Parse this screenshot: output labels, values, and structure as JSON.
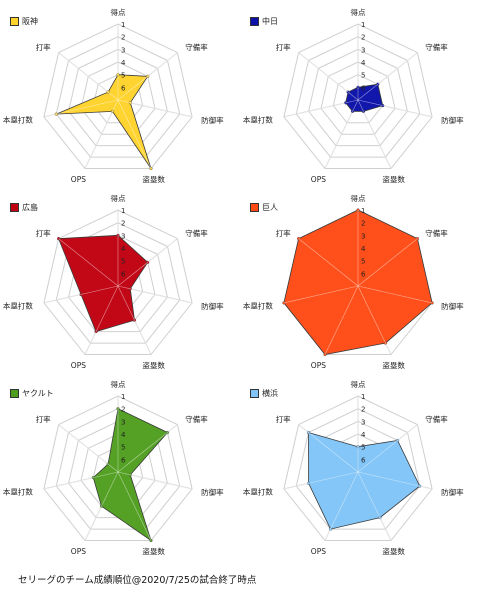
{
  "chart_data": [
    {
      "type": "radar",
      "team": "阪神",
      "color": "#FFD32A",
      "axes": [
        "得点",
        "守備率",
        "防御率",
        "盗塁数",
        "OPS",
        "本塁打数",
        "打率"
      ],
      "tick_labels": [
        "1",
        "2",
        "3",
        "4",
        "5",
        "6"
      ],
      "values": [
        5,
        4,
        6,
        1,
        6,
        2,
        6
      ]
    },
    {
      "type": "radar",
      "team": "中日",
      "color": "#0A10A8",
      "axes": [
        "得点",
        "守備率",
        "防御率",
        "盗塁数",
        "OPS",
        "本塁打数",
        "打率"
      ],
      "tick_labels": [
        "1",
        "2",
        "3",
        "4",
        "5",
        "6"
      ],
      "values": [
        6,
        5,
        5,
        6,
        6,
        6,
        6
      ]
    },
    {
      "type": "radar",
      "team": "広島",
      "color": "#C00010",
      "axes": [
        "得点",
        "守備率",
        "防御率",
        "盗塁数",
        "OPS",
        "本塁打数",
        "打率"
      ],
      "tick_labels": [
        "1",
        "2",
        "3",
        "4",
        "5",
        "6"
      ],
      "values": [
        3,
        4,
        6,
        4,
        3,
        4,
        1
      ]
    },
    {
      "type": "radar",
      "team": "巨人",
      "color": "#FF4A14",
      "axes": [
        "得点",
        "守備率",
        "防御率",
        "盗塁数",
        "OPS",
        "本塁打数",
        "打率"
      ],
      "tick_labels": [
        "1",
        "2",
        "3",
        "4",
        "5",
        "6"
      ],
      "values": [
        1,
        1,
        1,
        2,
        1,
        1,
        1
      ]
    },
    {
      "type": "radar",
      "team": "ヤクルト",
      "color": "#4E9E1E",
      "axes": [
        "得点",
        "守備率",
        "防御率",
        "盗塁数",
        "OPS",
        "本塁打数",
        "打率"
      ],
      "tick_labels": [
        "1",
        "2",
        "3",
        "4",
        "5",
        "6"
      ],
      "values": [
        2,
        2,
        6,
        1,
        4,
        5,
        6
      ]
    },
    {
      "type": "radar",
      "team": "横浜",
      "color": "#80C4F8",
      "axes": [
        "得点",
        "守備率",
        "防御率",
        "盗塁数",
        "OPS",
        "本塁打数",
        "打率"
      ],
      "tick_labels": [
        "1",
        "2",
        "3",
        "4",
        "5",
        "6"
      ],
      "values": [
        5,
        3,
        2,
        3,
        2,
        3,
        2
      ]
    }
  ],
  "caption": "セリーグのチーム成績順位@2020/7/25の試合終了時点"
}
